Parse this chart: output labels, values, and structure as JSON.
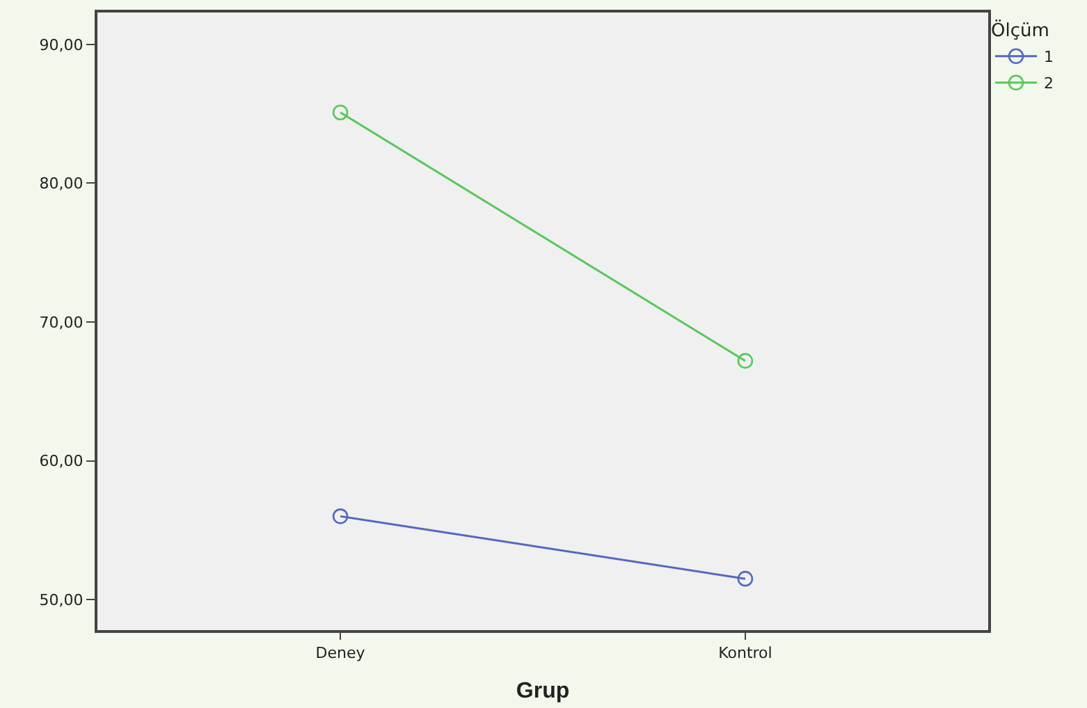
{
  "chart_data": {
    "type": "line",
    "xlabel": "Grup",
    "legend_title": "Ölçüm",
    "categories": [
      "Deney",
      "Kontrol"
    ],
    "series": [
      {
        "name": "1",
        "color": "#5468c0",
        "values": [
          56.0,
          51.5
        ]
      },
      {
        "name": "2",
        "color": "#56c85a",
        "values": [
          85.1,
          67.2
        ]
      }
    ],
    "ylim": [
      47.8,
      92.3
    ],
    "yticks": [
      {
        "value": 50,
        "label": "50,00"
      },
      {
        "value": 60,
        "label": "60,00"
      },
      {
        "value": 70,
        "label": "70,00"
      },
      {
        "value": 80,
        "label": "80,00"
      },
      {
        "value": 90,
        "label": "90,00"
      }
    ],
    "grid": false,
    "legend": "top right",
    "marker": "circle",
    "line_style": "solid"
  }
}
